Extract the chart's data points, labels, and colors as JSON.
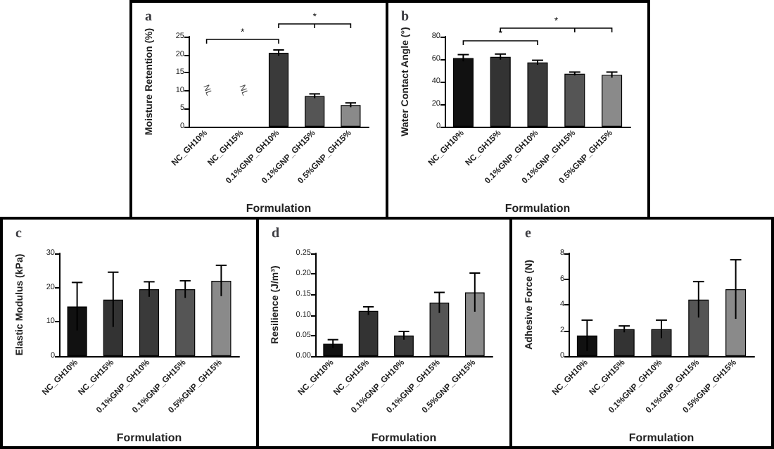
{
  "chart_data": [
    {
      "type": "bar",
      "title": "a",
      "xlabel": "Formulation",
      "ylabel": "Moisture Retention (%)",
      "categories": [
        "NC_GH10%",
        "NC_GH15%",
        "0.1%GNP_GH10%",
        "0.1%GNP_GH15%",
        "0.5%GNP_GH15%"
      ],
      "values": [
        null,
        null,
        20.5,
        8.5,
        6
      ],
      "errors": [
        null,
        null,
        0.8,
        0.6,
        0.6
      ],
      "value_labels": [
        "NL",
        "NL",
        null,
        null,
        null
      ],
      "colors": [
        "#111111",
        "#333333",
        "#3a3a3a",
        "#555555",
        "#8a8a8a"
      ],
      "ylim": [
        0,
        25
      ],
      "yticks": [
        0,
        5,
        10,
        15,
        20,
        25
      ],
      "annotations": [
        "*",
        "*"
      ]
    },
    {
      "type": "bar",
      "title": "b",
      "xlabel": "Formulation",
      "ylabel": "Water Contact Angle (°)",
      "categories": [
        "NC_GH10%",
        "NC_GH15%",
        "0.1%GNP_GH10%",
        "0.1%GNP_GH15%",
        "0.5%GNP_GH15%"
      ],
      "values": [
        61,
        62,
        57,
        47,
        46
      ],
      "errors": [
        3,
        2.5,
        2,
        1.5,
        2.5
      ],
      "colors": [
        "#111111",
        "#333333",
        "#3a3a3a",
        "#555555",
        "#8a8a8a"
      ],
      "ylim": [
        0,
        80
      ],
      "yticks": [
        0,
        20,
        40,
        60,
        80
      ],
      "annotations": [
        "*",
        "*"
      ]
    },
    {
      "type": "bar",
      "title": "c",
      "xlabel": "Formulation",
      "ylabel": "Elastic Modulus (kPa)",
      "categories": [
        "NC_GH10%",
        "NC_GH15%",
        "0.1%GNP_GH10%",
        "0.1%GNP_GH15%",
        "0.5%GNP_GH15%"
      ],
      "values": [
        14.5,
        16.5,
        19.5,
        19.5,
        22
      ],
      "errors": [
        7,
        8,
        2.2,
        2.5,
        4.5
      ],
      "colors": [
        "#111111",
        "#333333",
        "#3a3a3a",
        "#555555",
        "#8a8a8a"
      ],
      "ylim": [
        0,
        30
      ],
      "yticks": [
        0,
        10,
        20,
        30
      ]
    },
    {
      "type": "bar",
      "title": "d",
      "xlabel": "Formulation",
      "ylabel": "Resilience (J/m³)",
      "categories": [
        "NC_GH10%",
        "NC_GH15%",
        "0.1%GNP_GH10%",
        "0.1%GNP_GH15%",
        "0.5%GNP_GH15%"
      ],
      "values": [
        0.03,
        0.11,
        0.05,
        0.13,
        0.155
      ],
      "errors": [
        0.01,
        0.01,
        0.01,
        0.025,
        0.047
      ],
      "colors": [
        "#111111",
        "#333333",
        "#3a3a3a",
        "#555555",
        "#8a8a8a"
      ],
      "ylim": [
        0,
        0.25
      ],
      "yticks": [
        {
          "value": 0,
          "label": "0.00"
        },
        {
          "value": 0.05,
          "label": "0.05"
        },
        {
          "value": 0.1,
          "label": "0.10"
        },
        {
          "value": 0.15,
          "label": "0.15"
        },
        {
          "value": 0.2,
          "label": "0.20"
        },
        {
          "value": 0.25,
          "label": "0.25"
        }
      ]
    },
    {
      "type": "bar",
      "title": "e",
      "xlabel": "Formulation",
      "ylabel": "Adhesive Force (N)",
      "categories": [
        "NC_GH10%",
        "NC_GH15%",
        "0.1%GNP_GH10%",
        "0.1%GNP_GH15%",
        "0.5%GNP_GH15%"
      ],
      "values": [
        1.6,
        2.1,
        2.1,
        4.4,
        5.2
      ],
      "errors": [
        1.2,
        0.25,
        0.7,
        1.4,
        2.3
      ],
      "colors": [
        "#111111",
        "#333333",
        "#3a3a3a",
        "#555555",
        "#8a8a8a"
      ],
      "ylim": [
        0,
        8
      ],
      "yticks": [
        0,
        2,
        4,
        6,
        8
      ]
    }
  ]
}
